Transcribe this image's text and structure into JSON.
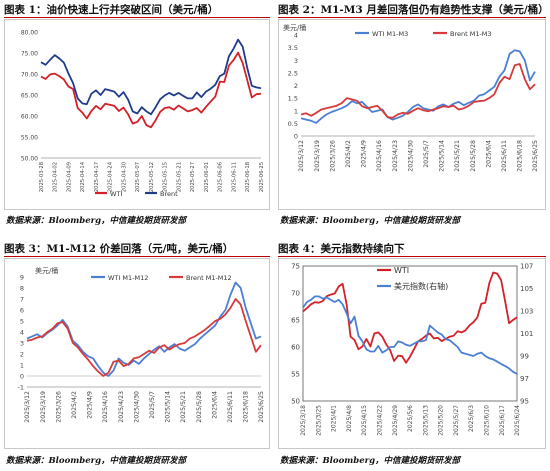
{
  "colors": {
    "wti": "#d42027",
    "brent": "#1f3c88",
    "m_blue": "#4a7fd4",
    "red": "#d63a3a",
    "rule": "#c00000"
  },
  "panels": [
    {
      "title": "图表 1：油价快速上行并突破区间（美元/桶）",
      "source": "数据来源：Bloomberg，中信建投期货研发部"
    },
    {
      "title": "图表 2：M1-M3 月差回落但仍有趋势性支撑（美元/桶）",
      "source": "数据来源：Bloomberg，中信建投期货研发部"
    },
    {
      "title": "图表 3：M1-M12 价差回落（元/吨，美元/桶）",
      "source": "数据来源：Bloomberg，中信建投期货研发部"
    },
    {
      "title": "图表 4：美元指数持续向下",
      "source": "数据来源：Bloomberg，中信建投期货研发部"
    }
  ],
  "chart_data": [
    {
      "type": "line",
      "title": "",
      "ylim": [
        50,
        80
      ],
      "yticks": [
        "50.00",
        "55.00",
        "60.00",
        "65.00",
        "70.00",
        "75.00",
        "80.00"
      ],
      "xticks": [
        "2025-03-28",
        "2025-04-02",
        "2025-04-09",
        "2025-04-14",
        "2025-04-17",
        "2025-04-24",
        "2025-04-30",
        "2025-05-07",
        "2025-05-12",
        "2025-05-15",
        "2025-05-21",
        "2025-05-27",
        "2025-06-01",
        "2025-06-06",
        "2025-06-11",
        "2025-06-18",
        "2025-06-25"
      ],
      "legend": [
        "WTI",
        "Brent"
      ],
      "series": [
        {
          "name": "WTI",
          "values": [
            69.4,
            68.8,
            69.9,
            70.1,
            69.5,
            68.7,
            67.0,
            66.4,
            61.9,
            60.8,
            59.4,
            61.2,
            62.4,
            61.6,
            62.9,
            62.7,
            62.4,
            61.2,
            62.0,
            60.4,
            58.2,
            58.6,
            60.0,
            57.8,
            57.3,
            59.0,
            61.0,
            61.9,
            62.1,
            61.5,
            62.5,
            61.8,
            61.1,
            61.4,
            61.9,
            60.8,
            62.2,
            63.4,
            64.6,
            68.2,
            68.1,
            72.0,
            73.3,
            75.1,
            72.6,
            68.5,
            64.4,
            65.2,
            65.3
          ]
        },
        {
          "name": "Brent",
          "values": [
            72.8,
            72.2,
            73.4,
            74.5,
            73.7,
            72.7,
            70.1,
            67.8,
            64.2,
            63.0,
            62.8,
            65.3,
            66.1,
            65.0,
            66.4,
            66.1,
            65.8,
            64.6,
            65.7,
            63.9,
            61.1,
            60.6,
            62.1,
            61.1,
            60.4,
            62.1,
            64.0,
            64.9,
            65.5,
            64.9,
            65.5,
            64.8,
            64.2,
            64.2,
            65.6,
            64.5,
            65.8,
            66.5,
            67.4,
            69.5,
            70.1,
            74.2,
            76.0,
            78.2,
            76.5,
            71.4,
            67.2,
            66.8,
            66.6
          ]
        }
      ]
    },
    {
      "type": "line",
      "title": "",
      "yunit": "美元/桶",
      "ylim": [
        0,
        4
      ],
      "yticks": [
        "0",
        "0.5",
        "1",
        "1.5",
        "2",
        "2.5",
        "3",
        "3.5",
        "4"
      ],
      "xticks": [
        "2025/3/12",
        "2025/3/19",
        "2025/3/26",
        "2025/4/2",
        "2025/4/9",
        "2025/4/16",
        "2025/4/23",
        "2025/4/30",
        "2025/5/7",
        "2025/5/14",
        "2025/5/21",
        "2025/5/28",
        "2025/6/4",
        "2025/6/11",
        "2025/6/18",
        "2025/6/25"
      ],
      "legend": [
        "WTI M1-M3",
        "Brent M1-M3"
      ],
      "series": [
        {
          "name": "WTI M1-M3",
          "values": [
            0.7,
            0.65,
            0.6,
            0.52,
            0.7,
            0.85,
            0.95,
            1.02,
            1.1,
            1.2,
            1.38,
            1.3,
            1.35,
            1.15,
            0.95,
            1.0,
            1.05,
            0.75,
            0.65,
            0.72,
            0.8,
            0.95,
            1.15,
            1.25,
            1.1,
            1.05,
            1.0,
            1.18,
            1.25,
            1.15,
            1.28,
            1.35,
            1.22,
            1.32,
            1.4,
            1.6,
            1.65,
            1.8,
            1.95,
            2.35,
            2.6,
            3.25,
            3.4,
            3.35,
            3.0,
            2.2,
            2.55
          ]
        },
        {
          "name": "Brent M1-M3",
          "values": [
            0.85,
            0.9,
            0.8,
            0.92,
            1.05,
            1.1,
            1.15,
            1.2,
            1.3,
            1.5,
            1.45,
            1.4,
            1.18,
            1.1,
            1.15,
            1.2,
            1.0,
            0.75,
            0.72,
            0.85,
            0.92,
            0.88,
            1.0,
            1.1,
            1.02,
            0.98,
            1.05,
            1.1,
            1.18,
            1.15,
            1.2,
            1.05,
            1.1,
            1.2,
            1.35,
            1.38,
            1.4,
            1.5,
            1.65,
            2.1,
            2.35,
            2.25,
            2.8,
            2.85,
            2.25,
            1.85,
            2.05
          ]
        }
      ]
    },
    {
      "type": "line",
      "title": "",
      "yunit": "美元/桶",
      "ylim": [
        -1,
        9
      ],
      "yticks": [
        "-1",
        "0",
        "1",
        "2",
        "3",
        "4",
        "5",
        "6",
        "7",
        "8",
        "9"
      ],
      "xticks": [
        "2025/3/12",
        "2025/3/19",
        "2025/3/26",
        "2025/4/2",
        "2025/4/9",
        "2025/4/16",
        "2025/4/23",
        "2025/4/30",
        "2025/5/7",
        "2025/5/14",
        "2025/5/21",
        "2025/5/28",
        "2025/6/4",
        "2025/6/11",
        "2025/6/18",
        "2025/6/25"
      ],
      "legend": [
        "WTI M1-M12",
        "Brent M1-M12"
      ],
      "series": [
        {
          "name": "WTI M1-M12",
          "values": [
            3.4,
            3.6,
            3.8,
            3.5,
            3.9,
            4.2,
            4.6,
            5.1,
            4.5,
            3.2,
            2.8,
            2.2,
            1.8,
            1.6,
            0.9,
            0.3,
            0.0,
            0.5,
            1.6,
            1.2,
            1.0,
            1.4,
            1.1,
            1.6,
            2.0,
            2.4,
            2.7,
            2.2,
            2.6,
            2.9,
            2.5,
            2.3,
            2.6,
            2.9,
            3.4,
            3.8,
            4.2,
            4.6,
            5.4,
            6.0,
            7.4,
            8.5,
            8.0,
            6.2,
            4.8,
            3.4,
            3.6
          ]
        },
        {
          "name": "Brent M1-M12",
          "values": [
            3.2,
            3.3,
            3.5,
            3.6,
            4.0,
            4.3,
            4.8,
            4.9,
            4.3,
            3.0,
            2.6,
            2.0,
            1.5,
            0.9,
            0.4,
            0.0,
            0.3,
            1.3,
            1.4,
            0.9,
            1.1,
            1.6,
            1.7,
            2.0,
            2.3,
            2.1,
            2.6,
            2.8,
            2.4,
            2.7,
            2.9,
            3.0,
            3.4,
            3.6,
            3.9,
            4.2,
            4.6,
            5.0,
            5.2,
            5.6,
            6.2,
            7.0,
            6.5,
            5.0,
            3.6,
            2.2,
            2.8
          ]
        }
      ]
    },
    {
      "type": "line",
      "title": "",
      "ylim_left": [
        50,
        75
      ],
      "ylim_right": [
        95,
        107
      ],
      "yticks_left": [
        "50",
        "55",
        "60",
        "65",
        "70",
        "75"
      ],
      "yticks_right": [
        "95",
        "97",
        "99",
        "101",
        "103",
        "105",
        "107"
      ],
      "xticks": [
        "2025/3/18",
        "2025/3/25",
        "2025/4/1",
        "2025/4/8",
        "2025/4/15",
        "2025/4/22",
        "2025/4/29",
        "2025/5/6",
        "2025/5/13",
        "2025/5/20",
        "2025/5/27",
        "2025/6/3",
        "2025/6/10",
        "2025/6/17",
        "2025/6/24"
      ],
      "legend": [
        "WTI",
        "美元指数(右轴)"
      ],
      "series": [
        {
          "name": "WTI",
          "axis": "left",
          "values": [
            66.6,
            67.2,
            67.9,
            68.3,
            68.2,
            68.5,
            69.4,
            69.7,
            69.9,
            71.2,
            71.7,
            67.9,
            61.9,
            61.3,
            59.6,
            60.1,
            61.5,
            60.1,
            62.5,
            62.7,
            61.9,
            60.5,
            59.4,
            57.4,
            58.4,
            58.3,
            57.1,
            58.2,
            59.6,
            61.0,
            61.5,
            62.1,
            62.5,
            61.6,
            61.7,
            61.1,
            61.5,
            61.9,
            62.1,
            62.9,
            62.7,
            63.1,
            64.0,
            64.6,
            65.5,
            68.0,
            68.2,
            71.8,
            73.8,
            73.6,
            72.4,
            68.5,
            64.4,
            65.0,
            65.5
          ]
        },
        {
          "name": "美元指数(右轴)",
          "axis": "right",
          "values": [
            103.3,
            103.8,
            104.0,
            104.3,
            104.3,
            104.1,
            104.2,
            104.0,
            103.8,
            104.0,
            103.6,
            102.8,
            101.9,
            102.5,
            100.8,
            100.3,
            99.6,
            99.4,
            99.4,
            99.9,
            99.3,
            99.5,
            99.8,
            99.8,
            100.3,
            100.2,
            100.0,
            99.9,
            100.1,
            100.3,
            100.3,
            100.4,
            101.7,
            101.4,
            101.1,
            100.9,
            100.5,
            100.4,
            100.1,
            99.8,
            99.3,
            99.2,
            99.1,
            99.0,
            99.2,
            99.3,
            99.0,
            98.8,
            98.7,
            98.5,
            98.3,
            98.1,
            97.9,
            97.6,
            97.4
          ]
        }
      ]
    }
  ]
}
